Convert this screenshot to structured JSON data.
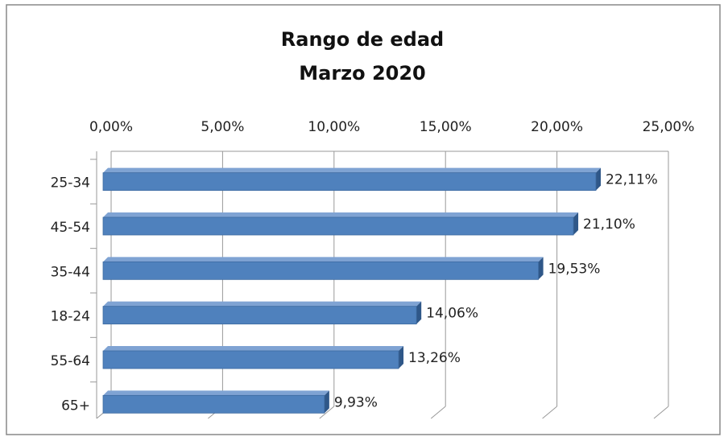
{
  "chart_data": {
    "type": "bar",
    "orientation": "horizontal",
    "title": "Rango de edad",
    "subtitle": "Marzo 2020",
    "categories": [
      "25-34",
      "45-54",
      "35-44",
      "18-24",
      "55-64",
      "65+"
    ],
    "values": [
      22.11,
      21.1,
      19.53,
      14.06,
      13.26,
      9.93
    ],
    "value_labels": [
      "22,11%",
      "21,10%",
      "19,53%",
      "14,06%",
      "13,26%",
      "9,93%"
    ],
    "color": "#4f81bd",
    "xlim": [
      0,
      25
    ],
    "xticks": [
      {
        "value": 0,
        "label": "0,00%"
      },
      {
        "value": 5,
        "label": "5,00%"
      },
      {
        "value": 10,
        "label": "10,00%"
      },
      {
        "value": 15,
        "label": "15,00%"
      },
      {
        "value": 20,
        "label": "20,00%"
      },
      {
        "value": 25,
        "label": "25,00%"
      }
    ],
    "grid": true
  }
}
